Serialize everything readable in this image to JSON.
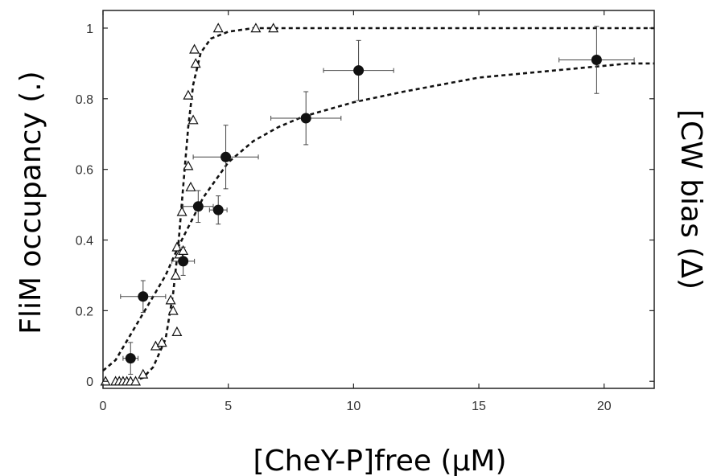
{
  "chart_data": {
    "type": "scatter",
    "xlabel": "[CheY-P]free (μM)",
    "ylabel": "FliM occupancy (.)",
    "y2label": "[CW bias (Δ)",
    "xlim": [
      0,
      22
    ],
    "ylim": [
      -0.02,
      1.05
    ],
    "xticks": [
      0,
      5,
      10,
      15,
      20
    ],
    "yticks": [
      0,
      0.2,
      0.4,
      0.6,
      0.8,
      1
    ],
    "xtick_labels": [
      "0",
      "5",
      "10",
      "15",
      "20"
    ],
    "ytick_labels": [
      "0",
      "0.2",
      "0.4",
      "0.6",
      "0.8",
      "1"
    ],
    "grid": false,
    "series": [
      {
        "marker": "filled-circle",
        "points": [
          {
            "x": 1.1,
            "y": 0.065,
            "xerr": 0.3,
            "yerr": 0.045
          },
          {
            "x": 1.6,
            "y": 0.24,
            "xerr": 0.9,
            "yerr": 0.045
          },
          {
            "x": 3.2,
            "y": 0.34,
            "xerr": 0.45,
            "yerr": 0.04
          },
          {
            "x": 3.8,
            "y": 0.495,
            "xerr": 0.6,
            "yerr": 0.045
          },
          {
            "x": 4.6,
            "y": 0.485,
            "xerr": 0.35,
            "yerr": 0.04
          },
          {
            "x": 4.9,
            "y": 0.635,
            "xerr": 1.3,
            "yerr": 0.09
          },
          {
            "x": 8.1,
            "y": 0.745,
            "xerr": 1.4,
            "yerr": 0.075
          },
          {
            "x": 10.2,
            "y": 0.88,
            "xerr": 1.4,
            "yerr": 0.085
          },
          {
            "x": 19.7,
            "y": 0.91,
            "xerr": 1.5,
            "yerr": 0.095
          }
        ]
      },
      {
        "marker": "open-triangle",
        "points": [
          {
            "x": 0.1,
            "y": 0.0
          },
          {
            "x": 0.5,
            "y": 0.0
          },
          {
            "x": 0.65,
            "y": 0.0
          },
          {
            "x": 0.8,
            "y": 0.0
          },
          {
            "x": 0.95,
            "y": 0.0
          },
          {
            "x": 1.1,
            "y": 0.0
          },
          {
            "x": 1.3,
            "y": 0.0
          },
          {
            "x": 1.6,
            "y": 0.02
          },
          {
            "x": 2.1,
            "y": 0.1
          },
          {
            "x": 2.35,
            "y": 0.11
          },
          {
            "x": 2.7,
            "y": 0.23
          },
          {
            "x": 2.8,
            "y": 0.2
          },
          {
            "x": 2.95,
            "y": 0.14
          },
          {
            "x": 2.9,
            "y": 0.3
          },
          {
            "x": 2.95,
            "y": 0.38
          },
          {
            "x": 3.05,
            "y": 0.36
          },
          {
            "x": 3.2,
            "y": 0.37
          },
          {
            "x": 3.15,
            "y": 0.48
          },
          {
            "x": 3.4,
            "y": 0.61
          },
          {
            "x": 3.5,
            "y": 0.55
          },
          {
            "x": 3.4,
            "y": 0.81
          },
          {
            "x": 3.6,
            "y": 0.74
          },
          {
            "x": 3.7,
            "y": 0.9
          },
          {
            "x": 3.65,
            "y": 0.94
          },
          {
            "x": 4.6,
            "y": 1.0
          },
          {
            "x": 6.1,
            "y": 1.0
          },
          {
            "x": 6.8,
            "y": 1.0
          }
        ]
      }
    ],
    "fits": [
      {
        "style": "dashed",
        "points": [
          [
            0,
            0.03
          ],
          [
            0.5,
            0.06
          ],
          [
            1,
            0.12
          ],
          [
            1.5,
            0.18
          ],
          [
            2,
            0.24
          ],
          [
            2.5,
            0.3
          ],
          [
            3,
            0.38
          ],
          [
            3.5,
            0.45
          ],
          [
            4,
            0.52
          ],
          [
            4.5,
            0.57
          ],
          [
            5,
            0.62
          ],
          [
            6,
            0.68
          ],
          [
            7,
            0.72
          ],
          [
            8,
            0.75
          ],
          [
            10,
            0.79
          ],
          [
            12,
            0.82
          ],
          [
            15,
            0.86
          ],
          [
            18,
            0.88
          ],
          [
            21,
            0.9
          ],
          [
            22,
            0.9
          ]
        ]
      },
      {
        "style": "dashed",
        "points": [
          [
            1.2,
            0.0
          ],
          [
            1.6,
            0.01
          ],
          [
            2.0,
            0.04
          ],
          [
            2.5,
            0.12
          ],
          [
            2.8,
            0.25
          ],
          [
            3.0,
            0.38
          ],
          [
            3.2,
            0.55
          ],
          [
            3.4,
            0.72
          ],
          [
            3.6,
            0.84
          ],
          [
            3.9,
            0.93
          ],
          [
            4.3,
            0.97
          ],
          [
            5.0,
            0.99
          ],
          [
            6.0,
            1.0
          ],
          [
            8,
            1.0
          ],
          [
            12,
            1.0
          ],
          [
            16,
            1.0
          ],
          [
            22,
            1.0
          ]
        ]
      }
    ],
    "colors": {
      "marker": "#111111",
      "line": "#111111",
      "frame": "#222222",
      "tick_text": "#333333"
    }
  }
}
